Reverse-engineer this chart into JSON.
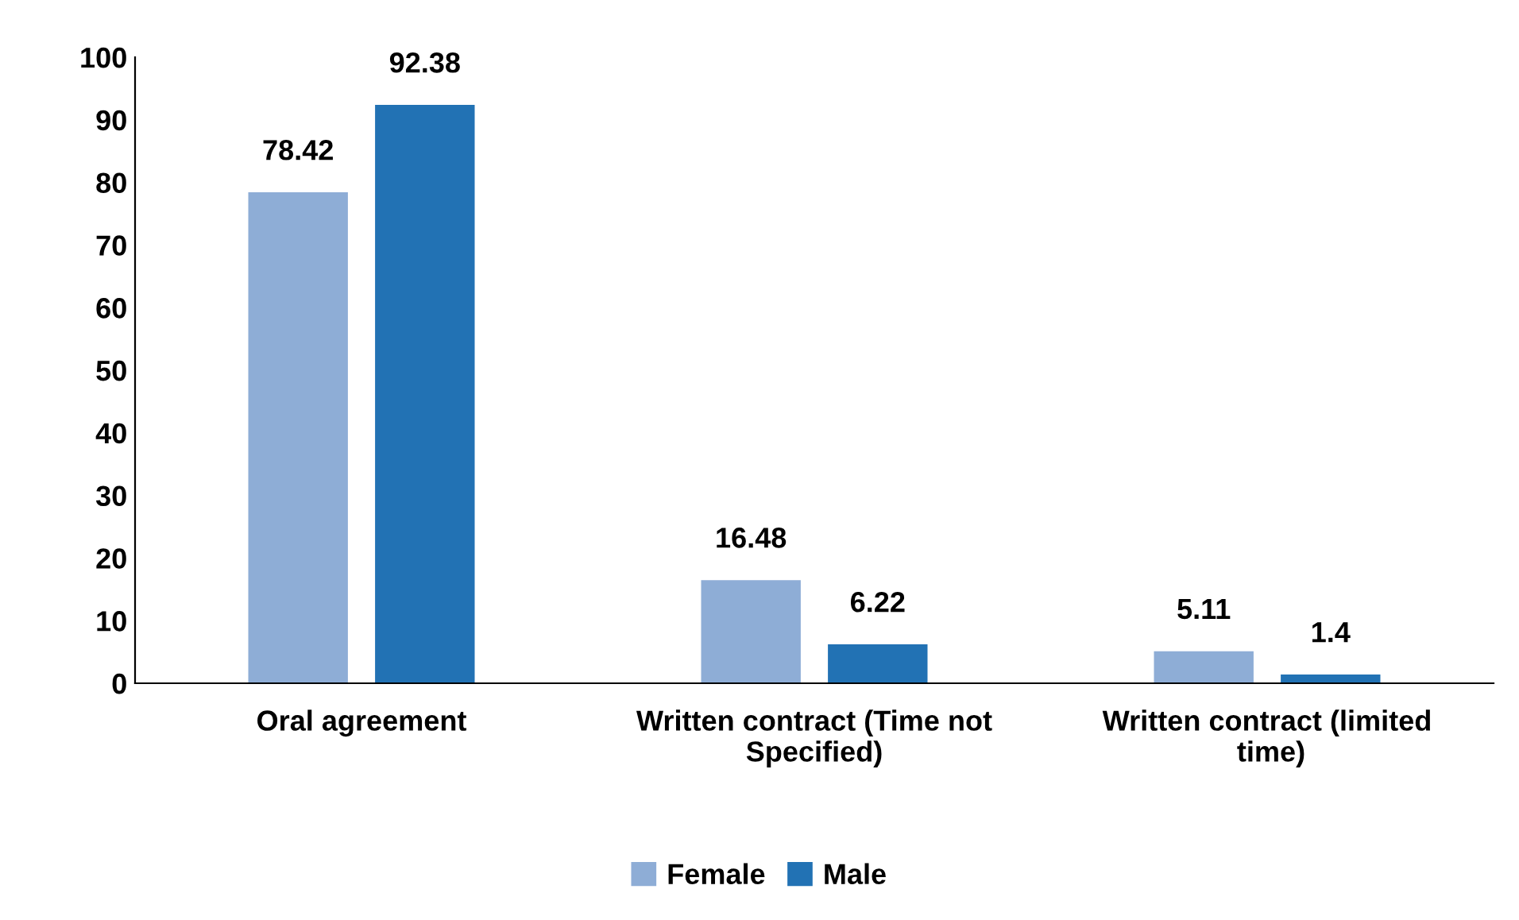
{
  "chart_data": {
    "type": "bar",
    "categories": [
      "Oral agreement",
      "Written contract (Time not Specified)",
      "Written contract (limited time)"
    ],
    "series": [
      {
        "name": "Female",
        "color": "#8eadd6",
        "values": [
          78.42,
          16.48,
          5.11
        ]
      },
      {
        "name": "Male",
        "color": "#2272b4",
        "values": [
          92.38,
          6.22,
          1.4
        ]
      }
    ],
    "ylim": [
      0,
      100
    ],
    "yticks": [
      0,
      10,
      20,
      30,
      40,
      50,
      60,
      70,
      80,
      90,
      100
    ],
    "grid": false,
    "legend": "bottom",
    "data_labels": true
  }
}
